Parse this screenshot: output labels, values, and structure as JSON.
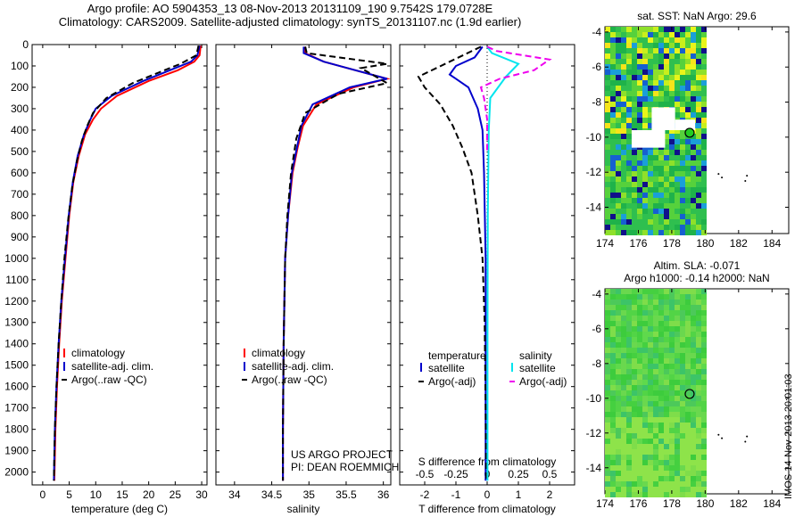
{
  "header": {
    "line1": "Argo profile: AO 5904353_13 08-Nov-2013 20131109_190 9.7542S 179.0728E",
    "line2": "Climatology: CARS2009. Satellite-adjusted climatology: synTS_20131107.nc (1.9d earlier)"
  },
  "side_stamp": "IMOS 14-Nov-2013 20:01:03",
  "colors": {
    "climatology": "#ff0000",
    "satellite_adj": "#0000cc",
    "argo": "#000000",
    "salinity_satellite": "#00e5ee",
    "salinity_argo": "#ee00ee",
    "map_marker": "#22cc22"
  },
  "chart_data": [
    {
      "type": "line",
      "id": "temperature-profile",
      "xlabel": "temperature (deg C)",
      "ylabel": "",
      "xlim": [
        -2,
        31
      ],
      "ylim": [
        2060,
        0
      ],
      "xticks": [
        0,
        5,
        10,
        15,
        20,
        25,
        30
      ],
      "yticks": [
        0,
        100,
        200,
        300,
        400,
        500,
        600,
        700,
        800,
        900,
        1000,
        1100,
        1200,
        1300,
        1400,
        1500,
        1600,
        1700,
        1800,
        1900,
        2000
      ],
      "legend": [
        "climatology",
        "satellite-adj. clim.",
        "Argo(..raw -QC)"
      ],
      "series": [
        {
          "name": "climatology",
          "color": "#ff0000",
          "dash": "",
          "x": [
            29.8,
            29.6,
            28.6,
            25.5,
            20,
            14,
            11,
            9.5,
            8,
            6.8,
            5.8,
            5.0,
            4.3,
            3.6,
            3.1,
            2.7,
            2.4,
            2.2
          ],
          "y": [
            5,
            50,
            80,
            120,
            170,
            240,
            300,
            350,
            420,
            520,
            640,
            800,
            1000,
            1200,
            1400,
            1600,
            1800,
            2040
          ]
        },
        {
          "name": "satellite-adj. clim.",
          "color": "#0000cc",
          "dash": "",
          "x": [
            29.6,
            29.2,
            28,
            24,
            19,
            13,
            10,
            9,
            7.8,
            6.6,
            5.7,
            4.9,
            4.2,
            3.5,
            3.0,
            2.6,
            2.3,
            2.1
          ],
          "y": [
            5,
            50,
            80,
            120,
            170,
            240,
            300,
            350,
            420,
            520,
            640,
            800,
            1000,
            1200,
            1400,
            1600,
            1800,
            2040
          ]
        },
        {
          "name": "Argo(..raw -QC)",
          "color": "#000000",
          "dash": "7,4",
          "x": [
            29.4,
            29.0,
            26,
            22,
            17,
            12,
            9.5,
            8.4,
            7.4,
            6.5,
            5.6,
            4.8,
            4.1,
            3.5,
            3.0,
            2.6,
            2.3,
            2.1
          ],
          "y": [
            5,
            50,
            90,
            130,
            180,
            250,
            320,
            380,
            450,
            540,
            660,
            820,
            1000,
            1200,
            1400,
            1600,
            1800,
            2040
          ]
        }
      ]
    },
    {
      "type": "line",
      "id": "salinity-profile",
      "xlabel": "salinity",
      "ylabel": "",
      "xlim": [
        33.75,
        36.1
      ],
      "ylim": [
        2060,
        0
      ],
      "xticks": [
        34,
        34.5,
        35,
        35.5,
        36
      ],
      "legend": [
        "climatology",
        "satellite-adj. clim.",
        "Argo(..raw -QC)"
      ],
      "annotation": [
        "US ARGO PROJECT",
        "PI: DEAN ROEMMICH"
      ],
      "series": [
        {
          "name": "climatology",
          "color": "#ff0000",
          "dash": "",
          "x": [
            34.95,
            34.95,
            35.2,
            36.05,
            35.6,
            35.1,
            34.92,
            34.85,
            34.78,
            34.72,
            34.68,
            34.66,
            34.65,
            34.65
          ],
          "y": [
            10,
            40,
            80,
            160,
            200,
            280,
            380,
            480,
            600,
            800,
            1000,
            1400,
            1800,
            2040
          ]
        },
        {
          "name": "satellite-adj. clim.",
          "color": "#0000cc",
          "dash": "",
          "x": [
            34.93,
            34.93,
            35.2,
            36.05,
            35.55,
            35.05,
            34.9,
            34.84,
            34.77,
            34.72,
            34.68,
            34.66,
            34.65,
            34.65
          ],
          "y": [
            10,
            40,
            80,
            160,
            200,
            280,
            380,
            480,
            600,
            800,
            1000,
            1400,
            1800,
            2040
          ]
        },
        {
          "name": "Argo(..raw -QC)",
          "color": "#000000",
          "dash": "7,4",
          "x": [
            34.95,
            34.97,
            36.05,
            35.7,
            36.05,
            35.4,
            34.95,
            34.83,
            34.76,
            34.71,
            34.68,
            34.66,
            34.65,
            34.65
          ],
          "y": [
            10,
            40,
            90,
            110,
            180,
            230,
            320,
            440,
            600,
            800,
            1000,
            1400,
            1800,
            2040
          ]
        }
      ]
    },
    {
      "type": "line",
      "id": "difference-profile",
      "xlabel": "T difference from climatology",
      "xlabel_top": "S difference from climatology",
      "xlim": [
        -2.8,
        2.8
      ],
      "ylim": [
        2060,
        0
      ],
      "xticks": [
        -2,
        -1,
        0,
        1,
        2
      ],
      "xticks_top": [
        -0.5,
        -0.25,
        0,
        0.25,
        0.5
      ],
      "legend_left": [
        "temperature",
        "satellite",
        "Argo(-adj)"
      ],
      "legend_right": [
        "salinity",
        "satellite",
        "Argo(-adj)"
      ],
      "series": [
        {
          "name": "temperature satellite",
          "color": "#0000cc",
          "dash": "",
          "x": [
            -0.15,
            -0.4,
            -1.0,
            -1.2,
            -0.6,
            -0.3,
            -0.15,
            -0.1,
            -0.05,
            -0.05,
            -0.05,
            -0.05
          ],
          "y": [
            10,
            60,
            100,
            140,
            200,
            300,
            400,
            600,
            1000,
            1400,
            1800,
            2040
          ]
        },
        {
          "name": "temperature Argo(-adj)",
          "color": "#000000",
          "dash": "7,4",
          "x": [
            -0.2,
            -1.2,
            -2.2,
            -2.0,
            -1.5,
            -1.1,
            -0.8,
            -0.5,
            -0.3,
            -0.15,
            -0.08,
            -0.05,
            -0.03
          ],
          "y": [
            10,
            80,
            150,
            200,
            280,
            380,
            480,
            600,
            800,
            1000,
            1300,
            1700,
            2040
          ]
        },
        {
          "name": "salinity satellite",
          "color": "#00e5ee",
          "dash": "",
          "x": [
            0,
            0.15,
            1.0,
            0.6,
            0.1,
            0.05,
            0.02,
            0.01,
            0.01
          ],
          "y": [
            10,
            40,
            90,
            150,
            250,
            400,
            800,
            1400,
            2040
          ]
        },
        {
          "name": "salinity Argo(-adj)",
          "color": "#ee00ee",
          "dash": "7,4",
          "x": [
            0,
            0.3,
            2.0,
            1.5,
            0.4,
            -0.2,
            -0.1,
            0.0,
            0.0
          ],
          "y": [
            10,
            30,
            70,
            120,
            160,
            200,
            250,
            350,
            500
          ]
        }
      ]
    }
  ],
  "maps": [
    {
      "title": "sat. SST: NaN Argo: 29.6",
      "xticks": [
        174,
        176,
        178,
        180,
        182,
        184
      ],
      "yticks": [
        -4,
        -6,
        -8,
        -10,
        -12,
        -14
      ],
      "xlim": [
        174,
        185
      ],
      "ylim": [
        -15.5,
        -3.7
      ],
      "marker": {
        "lon": 179.07,
        "lat": -9.75
      },
      "data_extent_lon": 180
    },
    {
      "title": "Altim. SLA: -0.071",
      "subtitle": "Argo h1000: -0.14 h2000: NaN",
      "xticks": [
        174,
        176,
        178,
        180,
        182,
        184
      ],
      "yticks": [
        -4,
        -6,
        -8,
        -10,
        -12,
        -14
      ],
      "xlim": [
        174,
        185
      ],
      "ylim": [
        -15.5,
        -3.7
      ],
      "marker": {
        "lon": 179.07,
        "lat": -9.75
      },
      "data_extent_lon": 180
    }
  ]
}
